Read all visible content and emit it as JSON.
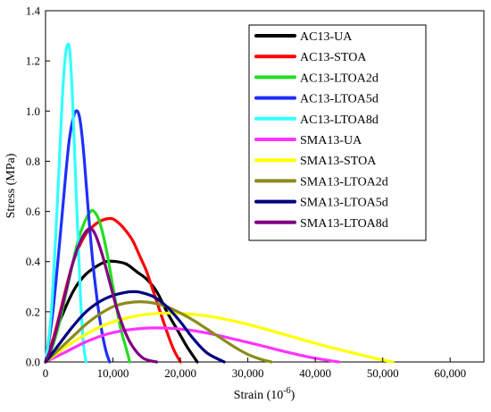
{
  "chart_data": {
    "type": "line",
    "title": "",
    "xlabel": "Strain (10",
    "xlabel_sup": "-6",
    "xlabel_close": ")",
    "ylabel": "Stress (MPa)",
    "xlim": [
      0,
      65000
    ],
    "ylim": [
      0,
      1.4
    ],
    "xticks": [
      0,
      10000,
      20000,
      30000,
      40000,
      50000,
      60000
    ],
    "xtick_labels": [
      "0",
      "10,000",
      "20,000",
      "30,000",
      "40,000",
      "50,000",
      "60,000"
    ],
    "yticks": [
      0,
      0.2,
      0.4,
      0.6,
      0.8,
      1.0,
      1.2,
      1.4
    ],
    "ytick_labels": [
      "0.0",
      "0.2",
      "0.4",
      "0.6",
      "0.8",
      "1.0",
      "1.2",
      "1.4"
    ],
    "grid": false,
    "legend_position": "top-right",
    "series": [
      {
        "name": "AC13-UA",
        "color": "#000000",
        "x": [
          0,
          1500,
          3000,
          4500,
          6000,
          7500,
          9000,
          10500,
          12000,
          13500,
          15000,
          16500,
          18000,
          19500,
          21000,
          22500
        ],
        "y": [
          0,
          0.12,
          0.22,
          0.3,
          0.35,
          0.38,
          0.4,
          0.4,
          0.39,
          0.36,
          0.33,
          0.28,
          0.2,
          0.13,
          0.06,
          0.0
        ]
      },
      {
        "name": "AC13-STOA",
        "color": "#ff0000",
        "x": [
          0,
          1000,
          2000,
          3000,
          4000,
          5000,
          6000,
          7000,
          8000,
          9000,
          10000,
          11000,
          12000,
          13000,
          14000,
          15000,
          16000,
          17000,
          18000,
          19000,
          20000
        ],
        "y": [
          0,
          0.08,
          0.18,
          0.29,
          0.39,
          0.46,
          0.51,
          0.54,
          0.56,
          0.57,
          0.57,
          0.55,
          0.52,
          0.48,
          0.42,
          0.36,
          0.28,
          0.2,
          0.12,
          0.05,
          0.0
        ]
      },
      {
        "name": "AC13-LTOA2d",
        "color": "#22dd22",
        "x": [
          0,
          1000,
          2000,
          3000,
          4000,
          5000,
          6000,
          6700,
          7200,
          8000,
          9000,
          10000,
          11000,
          12000,
          12500
        ],
        "y": [
          0,
          0.06,
          0.15,
          0.27,
          0.39,
          0.5,
          0.57,
          0.6,
          0.6,
          0.56,
          0.45,
          0.3,
          0.15,
          0.05,
          0.0
        ]
      },
      {
        "name": "AC13-LTOA5d",
        "color": "#1f2fff",
        "x": [
          0,
          1000,
          2000,
          3000,
          3500,
          4000,
          4500,
          5000,
          5500,
          6000,
          6500,
          7000,
          7500,
          8000,
          8500,
          9000,
          9500
        ],
        "y": [
          0,
          0.18,
          0.45,
          0.75,
          0.88,
          0.96,
          1.0,
          0.98,
          0.88,
          0.72,
          0.55,
          0.4,
          0.28,
          0.18,
          0.1,
          0.04,
          0.0
        ]
      },
      {
        "name": "AC13-LTOA8d",
        "color": "#33ffff",
        "x": [
          0,
          800,
          1600,
          2400,
          2800,
          3200,
          3600,
          4000,
          4400,
          4800,
          5200,
          5600,
          6000
        ],
        "y": [
          0,
          0.18,
          0.55,
          1.0,
          1.18,
          1.26,
          1.24,
          1.05,
          0.78,
          0.5,
          0.25,
          0.08,
          0.0
        ]
      },
      {
        "name": "SMA13-UA",
        "color": "#ff33ff",
        "x": [
          0,
          3000,
          6000,
          9000,
          12000,
          15000,
          18000,
          21000,
          24000,
          27000,
          30000,
          33000,
          36000,
          39000,
          42000,
          43500
        ],
        "y": [
          0,
          0.04,
          0.08,
          0.11,
          0.127,
          0.135,
          0.135,
          0.128,
          0.115,
          0.097,
          0.078,
          0.058,
          0.038,
          0.02,
          0.006,
          0.0
        ]
      },
      {
        "name": "SMA13-STOA",
        "color": "#ffff00",
        "x": [
          0,
          3000,
          6000,
          9000,
          12000,
          15000,
          18000,
          21000,
          24000,
          27000,
          30000,
          33000,
          36000,
          39000,
          42000,
          45000,
          48000,
          51500
        ],
        "y": [
          0,
          0.06,
          0.11,
          0.15,
          0.175,
          0.19,
          0.195,
          0.192,
          0.183,
          0.168,
          0.15,
          0.128,
          0.105,
          0.082,
          0.06,
          0.04,
          0.02,
          0.0
        ]
      },
      {
        "name": "SMA13-LTOA2d",
        "color": "#8b8b1a",
        "x": [
          0,
          2000,
          4000,
          6000,
          8000,
          10000,
          12000,
          14000,
          16000,
          18000,
          20000,
          22000,
          24000,
          26000,
          28000,
          30000,
          32000,
          33500
        ],
        "y": [
          0,
          0.05,
          0.1,
          0.15,
          0.19,
          0.22,
          0.235,
          0.24,
          0.235,
          0.22,
          0.195,
          0.165,
          0.13,
          0.095,
          0.06,
          0.03,
          0.01,
          0.0
        ]
      },
      {
        "name": "SMA13-LTOA5d",
        "color": "#000080",
        "x": [
          0,
          2000,
          4000,
          6000,
          8000,
          10000,
          12000,
          13000,
          14000,
          16000,
          18000,
          20000,
          22000,
          24000,
          26500
        ],
        "y": [
          0,
          0.07,
          0.14,
          0.2,
          0.24,
          0.265,
          0.278,
          0.28,
          0.278,
          0.26,
          0.22,
          0.16,
          0.09,
          0.035,
          0.0
        ]
      },
      {
        "name": "SMA13-LTOA8d",
        "color": "#800080",
        "x": [
          0,
          1000,
          2000,
          3000,
          4000,
          5000,
          6000,
          6800,
          7500,
          8500,
          9500,
          10500,
          11500,
          12500,
          13500,
          14500,
          15500,
          16500
        ],
        "y": [
          0,
          0.07,
          0.17,
          0.28,
          0.39,
          0.47,
          0.52,
          0.53,
          0.5,
          0.42,
          0.32,
          0.22,
          0.14,
          0.08,
          0.04,
          0.015,
          0.005,
          0.0
        ]
      }
    ]
  }
}
